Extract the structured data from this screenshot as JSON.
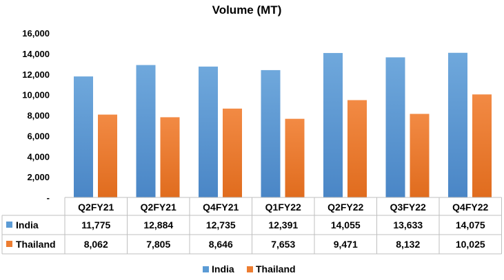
{
  "chart_data": {
    "type": "bar",
    "title": "Volume (MT)",
    "categories": [
      "Q2FY21",
      "Q2FY21",
      "Q4FY21",
      "Q1FY22",
      "Q2FY22",
      "Q3FY22",
      "Q4FY22"
    ],
    "series": [
      {
        "name": "India",
        "color": "#5B9BD5",
        "values": [
          11775,
          12884,
          12735,
          12391,
          14055,
          13633,
          14075
        ],
        "labels": [
          "11,775",
          "12,884",
          "12,735",
          "12,391",
          "14,055",
          "13,633",
          "14,075"
        ]
      },
      {
        "name": "Thailand",
        "color": "#ED7D31",
        "values": [
          8062,
          7805,
          8646,
          7653,
          9471,
          8132,
          10025
        ],
        "labels": [
          "8,062",
          "7,805",
          "8,646",
          "7,653",
          "9,471",
          "8,132",
          "10,025"
        ]
      }
    ],
    "ylim": [
      0,
      16000
    ],
    "yticks": [
      0,
      2000,
      4000,
      6000,
      8000,
      10000,
      12000,
      14000,
      16000
    ],
    "ytick_labels": [
      "-",
      "2,000",
      "4,000",
      "6,000",
      "8,000",
      "10,000",
      "12,000",
      "14,000",
      "16,000"
    ],
    "grid": false,
    "data_table": true,
    "legend_position": "bottom-center"
  }
}
